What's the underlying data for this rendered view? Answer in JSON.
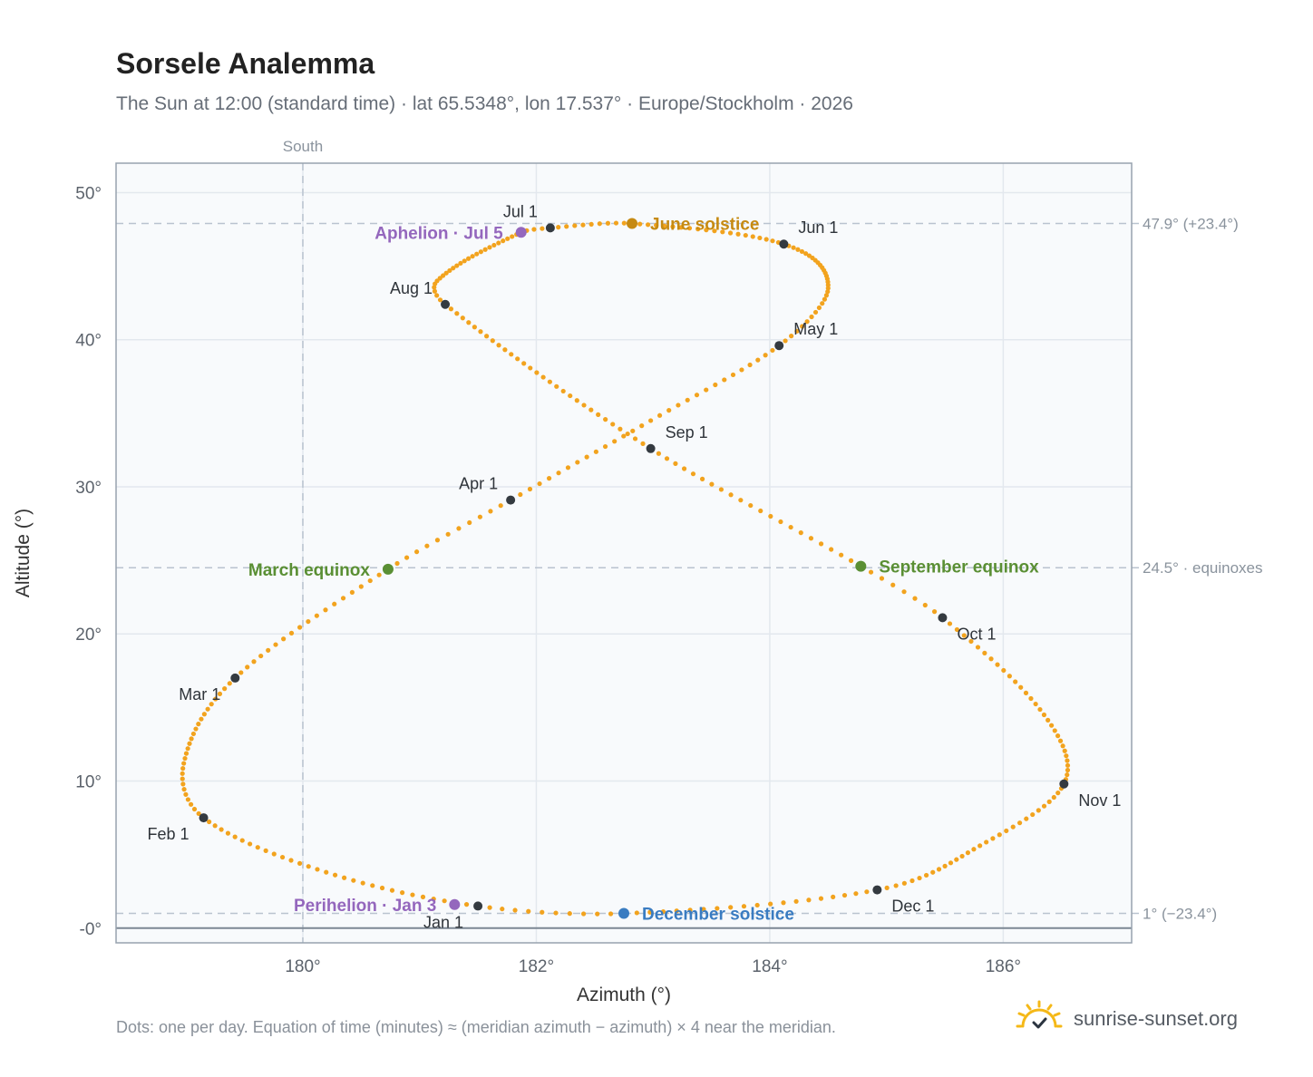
{
  "header": {
    "title": "Sorsele Analemma",
    "subtitle": "The Sun at 12:00 (standard time) · lat 65.5348°, lon 17.537° · Europe/Stockholm · 2026"
  },
  "footer": {
    "note": "Dots: one per day. Equation of time (minutes) ≈ (meridian azimuth − azimuth) × 4 near the meridian.",
    "brand": "sunrise-sunset.org",
    "brand_icon": "sun-icon"
  },
  "colors": {
    "path": "#f2a31e",
    "month_dot": "#343a40",
    "solstice_june": "#c68a12",
    "solstice_december": "#3a7cc1",
    "equinox": "#5a8f34",
    "apsis": "#9467bd",
    "refline": "#b9c3cf",
    "grid": "#e3e8ee",
    "frame": "#97a2ae",
    "plot_bg": "#f8fafc"
  },
  "chart_data": {
    "type": "scatter",
    "xlabel": "Azimuth (°)",
    "ylabel": "Altitude (°)",
    "xlim": [
      178.4,
      187.1
    ],
    "ylim": [
      -1,
      52
    ],
    "x_ticks": [
      180,
      182,
      184,
      186
    ],
    "x_tick_labels": [
      "180°",
      "182°",
      "184°",
      "186°"
    ],
    "y_ticks": [
      0,
      10,
      20,
      30,
      40,
      50
    ],
    "y_tick_labels": [
      "-0°",
      "10°",
      "20°",
      "30°",
      "40°",
      "50°"
    ],
    "grid": true,
    "meridian": {
      "azimuth": 180,
      "label": "South"
    },
    "horizon_altitude": 0,
    "reference_lines": [
      {
        "y": 47.9,
        "label": "47.9° (+23.4°)"
      },
      {
        "y": 24.5,
        "label": "24.5° · equinoxes"
      },
      {
        "y": 1.0,
        "label": "1° (−23.4°)"
      }
    ],
    "path_anchors": [
      {
        "date": "2026-01-01",
        "az": 181.5,
        "alt": 1.5
      },
      {
        "date": "2026-01-16",
        "az": 180.2,
        "alt": 3.8
      },
      {
        "date": "2026-02-01",
        "az": 179.15,
        "alt": 7.5
      },
      {
        "date": "2026-02-12",
        "az": 178.98,
        "alt": 11.2
      },
      {
        "date": "2026-03-01",
        "az": 179.42,
        "alt": 17.0
      },
      {
        "date": "2026-03-20",
        "az": 180.73,
        "alt": 24.4
      },
      {
        "date": "2026-04-01",
        "az": 181.78,
        "alt": 29.1
      },
      {
        "date": "2026-04-16",
        "az": 182.98,
        "alt": 34.5
      },
      {
        "date": "2026-05-01",
        "az": 184.08,
        "alt": 39.6
      },
      {
        "date": "2026-05-14",
        "az": 184.5,
        "alt": 43.5
      },
      {
        "date": "2026-06-01",
        "az": 184.12,
        "alt": 46.5
      },
      {
        "date": "2026-06-21",
        "az": 182.82,
        "alt": 47.9
      },
      {
        "date": "2026-07-01",
        "az": 182.12,
        "alt": 47.6
      },
      {
        "date": "2026-07-05",
        "az": 181.87,
        "alt": 47.3
      },
      {
        "date": "2026-07-26",
        "az": 181.15,
        "alt": 44.0
      },
      {
        "date": "2026-08-01",
        "az": 181.22,
        "alt": 42.4
      },
      {
        "date": "2026-09-01",
        "az": 182.98,
        "alt": 32.6
      },
      {
        "date": "2026-09-23",
        "az": 184.78,
        "alt": 24.6
      },
      {
        "date": "2026-10-01",
        "az": 185.48,
        "alt": 21.1
      },
      {
        "date": "2026-10-18",
        "az": 186.35,
        "alt": 14.5
      },
      {
        "date": "2026-11-01",
        "az": 186.52,
        "alt": 9.8
      },
      {
        "date": "2026-11-16",
        "az": 185.8,
        "alt": 5.6
      },
      {
        "date": "2026-12-01",
        "az": 184.92,
        "alt": 2.6
      },
      {
        "date": "2026-12-21",
        "az": 182.75,
        "alt": 1.0
      },
      {
        "date": "2027-01-01",
        "az": 181.5,
        "alt": 1.5
      }
    ],
    "month_points": [
      {
        "label": "Jan 1",
        "az": 181.5,
        "alt": 1.5,
        "anchor": "bl"
      },
      {
        "label": "Feb 1",
        "az": 179.15,
        "alt": 7.5,
        "anchor": "bl"
      },
      {
        "label": "Mar 1",
        "az": 179.42,
        "alt": 17.0,
        "anchor": "bl"
      },
      {
        "label": "Apr 1",
        "az": 181.78,
        "alt": 29.1,
        "anchor": "tl"
      },
      {
        "label": "May 1",
        "az": 184.08,
        "alt": 39.6,
        "anchor": "tr"
      },
      {
        "label": "Jun 1",
        "az": 184.12,
        "alt": 46.5,
        "anchor": "tr"
      },
      {
        "label": "Jul 1",
        "az": 182.12,
        "alt": 47.6,
        "anchor": "tl"
      },
      {
        "label": "Aug 1",
        "az": 181.22,
        "alt": 42.4,
        "anchor": "tl"
      },
      {
        "label": "Sep 1",
        "az": 182.98,
        "alt": 32.6,
        "anchor": "tr"
      },
      {
        "label": "Oct 1",
        "az": 185.48,
        "alt": 21.1,
        "anchor": "br"
      },
      {
        "label": "Nov 1",
        "az": 186.52,
        "alt": 9.8,
        "anchor": "br"
      },
      {
        "label": "Dec 1",
        "az": 184.92,
        "alt": 2.6,
        "anchor": "br"
      }
    ],
    "events": [
      {
        "label": "June solstice",
        "az": 182.82,
        "alt": 47.9,
        "side": "right",
        "kind": "solstice_june"
      },
      {
        "label": "Aphelion · Jul 5",
        "az": 181.87,
        "alt": 47.3,
        "side": "left",
        "kind": "apsis"
      },
      {
        "label": "March equinox",
        "az": 180.73,
        "alt": 24.4,
        "side": "left",
        "kind": "equinox"
      },
      {
        "label": "September equinox",
        "az": 184.78,
        "alt": 24.6,
        "side": "right",
        "kind": "equinox"
      },
      {
        "label": "Perihelion · Jan 3",
        "az": 181.3,
        "alt": 1.6,
        "side": "left",
        "kind": "apsis"
      },
      {
        "label": "December solstice",
        "az": 182.75,
        "alt": 1.0,
        "side": "right",
        "kind": "solstice_december"
      }
    ]
  }
}
